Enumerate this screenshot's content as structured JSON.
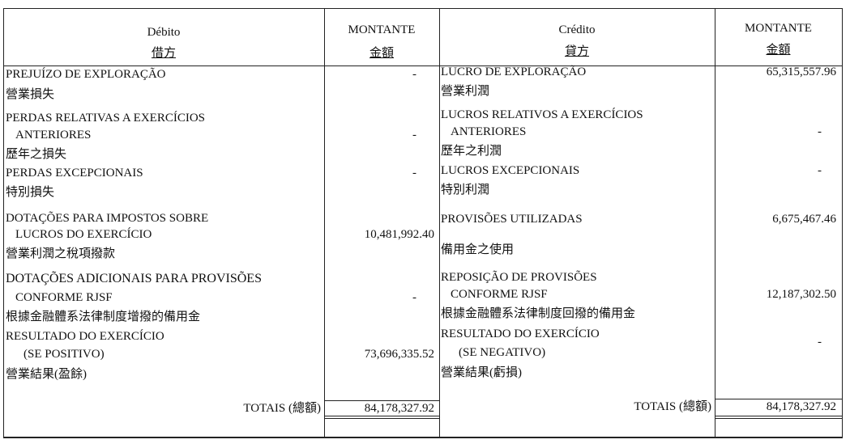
{
  "debit": {
    "header": {
      "title_pt": "Débito",
      "title_zh": "借方",
      "amount_pt": "MONTANTE",
      "amount_zh": "金額"
    },
    "items": [
      {
        "lines": [
          "PREJUÍZO DE EXPLORAÇÃO",
          "營業損失"
        ],
        "amount": "-"
      },
      {
        "lines": [
          "PERDAS RELATIVAS A EXERCÍCIOS",
          "ANTERIORES",
          "歷年之損失"
        ],
        "amount": "-"
      },
      {
        "lines": [
          "PERDAS EXCEPCIONAIS",
          "特別損失"
        ],
        "amount": "-"
      },
      {
        "lines": [
          "DOTAÇÕES PARA IMPOSTOS SOBRE",
          "LUCROS DO EXERCÍCIO",
          "營業利潤之稅項撥款"
        ],
        "amount": "10,481,992.40"
      },
      {
        "lines": [
          "DOTAÇÕES ADICIONAIS PARA PROVISÕES",
          "CONFORME RJSF",
          "根據金融體系法律制度增撥的備用金"
        ],
        "amount": "-"
      },
      {
        "lines": [
          "RESULTADO DO EXERCÍCIO",
          "(SE POSITIVO)",
          "營業結果(盈餘)"
        ],
        "amount": "73,696,335.52"
      }
    ],
    "totals_label": "TOTAIS (總額)",
    "totals_value": "84,178,327.92"
  },
  "credit": {
    "header": {
      "title_pt": "Crédito",
      "title_zh": "貸方",
      "amount_pt": "MONTANTE",
      "amount_zh": "金額"
    },
    "items": [
      {
        "lines": [
          "LUCRO DE EXPLORAÇÃO",
          "營業利潤"
        ],
        "amount": "65,315,557.96"
      },
      {
        "lines": [
          "LUCROS RELATIVOS A EXERCÍCIOS",
          "ANTERIORES",
          "歷年之利潤"
        ],
        "amount": "-"
      },
      {
        "lines": [
          "LUCROS EXCEPCIONAIS",
          "特別利潤"
        ],
        "amount": "-"
      },
      {
        "lines": [
          "PROVISÕES UTILIZADAS",
          "備用金之使用"
        ],
        "amount": "6,675,467.46"
      },
      {
        "lines": [
          "REPOSIÇÃO DE PROVISÕES",
          "CONFORME RJSF",
          "根據金融體系法律制度回撥的備用金"
        ],
        "amount": "12,187,302.50"
      },
      {
        "lines": [
          "RESULTADO DO EXERCÍCIO",
          "(SE NEGATIVO)",
          "營業結果(虧損)"
        ],
        "amount": "-"
      }
    ],
    "totals_label": "TOTAIS (總額)",
    "totals_value": "84,178,327.92"
  }
}
